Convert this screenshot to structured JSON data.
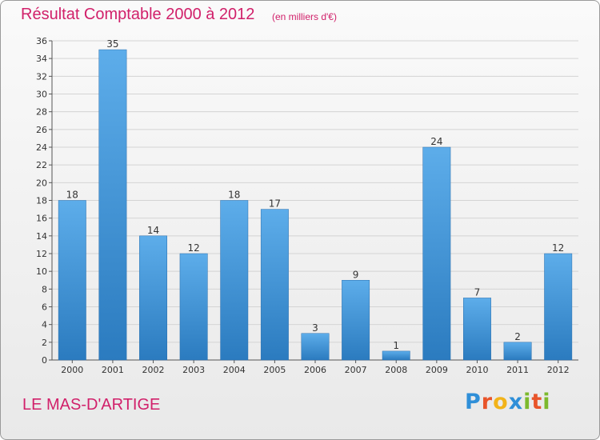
{
  "title": "Résultat Comptable 2000 à 2012",
  "unit_note": "(en milliers d'€)",
  "place_name": "LE MAS-D'ARTIGE",
  "logo": {
    "letters": [
      "P",
      "r",
      "o",
      "x",
      "i",
      "t",
      "i"
    ],
    "text": "Proxiti"
  },
  "colors": {
    "title": "#d1206a",
    "bar_top": "#5dadea",
    "bar_bottom": "#2b7bbf"
  },
  "chart_data": {
    "type": "bar",
    "categories": [
      "2000",
      "2001",
      "2002",
      "2003",
      "2004",
      "2005",
      "2006",
      "2007",
      "2008",
      "2009",
      "2010",
      "2011",
      "2012"
    ],
    "values": [
      18,
      35,
      14,
      12,
      18,
      17,
      3,
      9,
      1,
      24,
      7,
      2,
      12
    ],
    "yticks": [
      0,
      2,
      4,
      6,
      8,
      10,
      12,
      14,
      16,
      18,
      20,
      22,
      24,
      26,
      28,
      30,
      32,
      34,
      36
    ],
    "ylim": [
      0,
      36
    ],
    "grid": true,
    "data_labels": true
  }
}
